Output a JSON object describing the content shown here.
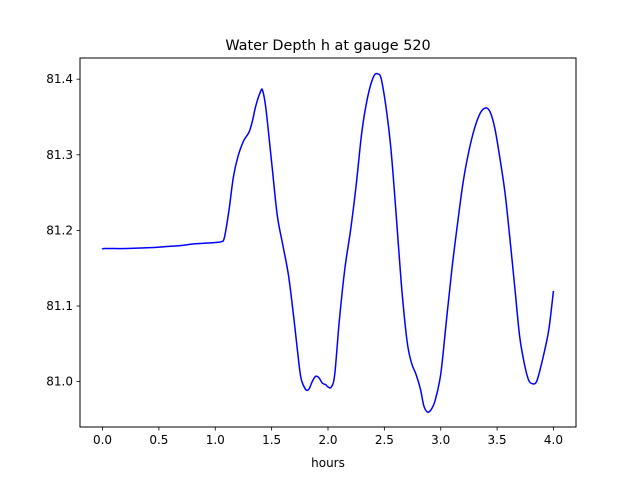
{
  "chart_data": {
    "type": "line",
    "title": "Water Depth h at gauge 520",
    "xlabel": "hours",
    "ylabel": "",
    "xlim": [
      -0.2,
      4.2
    ],
    "ylim": [
      80.94,
      81.428
    ],
    "xticks": [
      0.0,
      0.5,
      1.0,
      1.5,
      2.0,
      2.5,
      3.0,
      3.5,
      4.0
    ],
    "xtick_labels": [
      "0.0",
      "0.5",
      "1.0",
      "1.5",
      "2.0",
      "2.5",
      "3.0",
      "3.5",
      "4.0"
    ],
    "yticks": [
      81.0,
      81.1,
      81.2,
      81.3,
      81.4
    ],
    "ytick_labels": [
      "81.0",
      "81.1",
      "81.2",
      "81.3",
      "81.4"
    ],
    "grid": false,
    "series": [
      {
        "color": "#0000ff",
        "points": [
          [
            0.0,
            81.175
          ],
          [
            0.02,
            81.176
          ],
          [
            0.2,
            81.176
          ],
          [
            0.4,
            81.177
          ],
          [
            0.6,
            81.179
          ],
          [
            0.7,
            81.18
          ],
          [
            0.8,
            81.182
          ],
          [
            0.9,
            81.183
          ],
          [
            1.0,
            81.184
          ],
          [
            1.05,
            81.185
          ],
          [
            1.08,
            81.19
          ],
          [
            1.12,
            81.225
          ],
          [
            1.16,
            81.27
          ],
          [
            1.2,
            81.297
          ],
          [
            1.25,
            81.318
          ],
          [
            1.3,
            81.33
          ],
          [
            1.33,
            81.345
          ],
          [
            1.36,
            81.365
          ],
          [
            1.4,
            81.383
          ],
          [
            1.42,
            81.385
          ],
          [
            1.45,
            81.36
          ],
          [
            1.5,
            81.29
          ],
          [
            1.55,
            81.22
          ],
          [
            1.6,
            81.18
          ],
          [
            1.65,
            81.14
          ],
          [
            1.7,
            81.08
          ],
          [
            1.73,
            81.04
          ],
          [
            1.76,
            81.005
          ],
          [
            1.8,
            80.99
          ],
          [
            1.83,
            80.99
          ],
          [
            1.86,
            81.0
          ],
          [
            1.89,
            81.007
          ],
          [
            1.92,
            81.005
          ],
          [
            1.95,
            80.998
          ],
          [
            1.98,
            80.996
          ],
          [
            2.0,
            80.993
          ],
          [
            2.03,
            80.993
          ],
          [
            2.06,
            81.01
          ],
          [
            2.1,
            81.08
          ],
          [
            2.15,
            81.15
          ],
          [
            2.2,
            81.2
          ],
          [
            2.25,
            81.26
          ],
          [
            2.3,
            81.33
          ],
          [
            2.35,
            81.375
          ],
          [
            2.4,
            81.402
          ],
          [
            2.44,
            81.407
          ],
          [
            2.48,
            81.395
          ],
          [
            2.55,
            81.32
          ],
          [
            2.6,
            81.23
          ],
          [
            2.65,
            81.13
          ],
          [
            2.7,
            81.055
          ],
          [
            2.74,
            81.025
          ],
          [
            2.78,
            81.01
          ],
          [
            2.82,
            80.99
          ],
          [
            2.85,
            80.968
          ],
          [
            2.88,
            80.96
          ],
          [
            2.91,
            80.962
          ],
          [
            2.95,
            80.975
          ],
          [
            3.0,
            81.01
          ],
          [
            3.05,
            81.08
          ],
          [
            3.1,
            81.15
          ],
          [
            3.15,
            81.21
          ],
          [
            3.2,
            81.265
          ],
          [
            3.25,
            81.305
          ],
          [
            3.3,
            81.335
          ],
          [
            3.35,
            81.355
          ],
          [
            3.4,
            81.362
          ],
          [
            3.44,
            81.356
          ],
          [
            3.48,
            81.335
          ],
          [
            3.52,
            81.3
          ],
          [
            3.57,
            81.25
          ],
          [
            3.62,
            81.18
          ],
          [
            3.66,
            81.12
          ],
          [
            3.7,
            81.06
          ],
          [
            3.74,
            81.025
          ],
          [
            3.78,
            81.002
          ],
          [
            3.82,
            80.997
          ],
          [
            3.85,
            81.0
          ],
          [
            3.88,
            81.015
          ],
          [
            3.92,
            81.04
          ],
          [
            3.96,
            81.07
          ],
          [
            4.0,
            81.12
          ]
        ]
      }
    ]
  }
}
